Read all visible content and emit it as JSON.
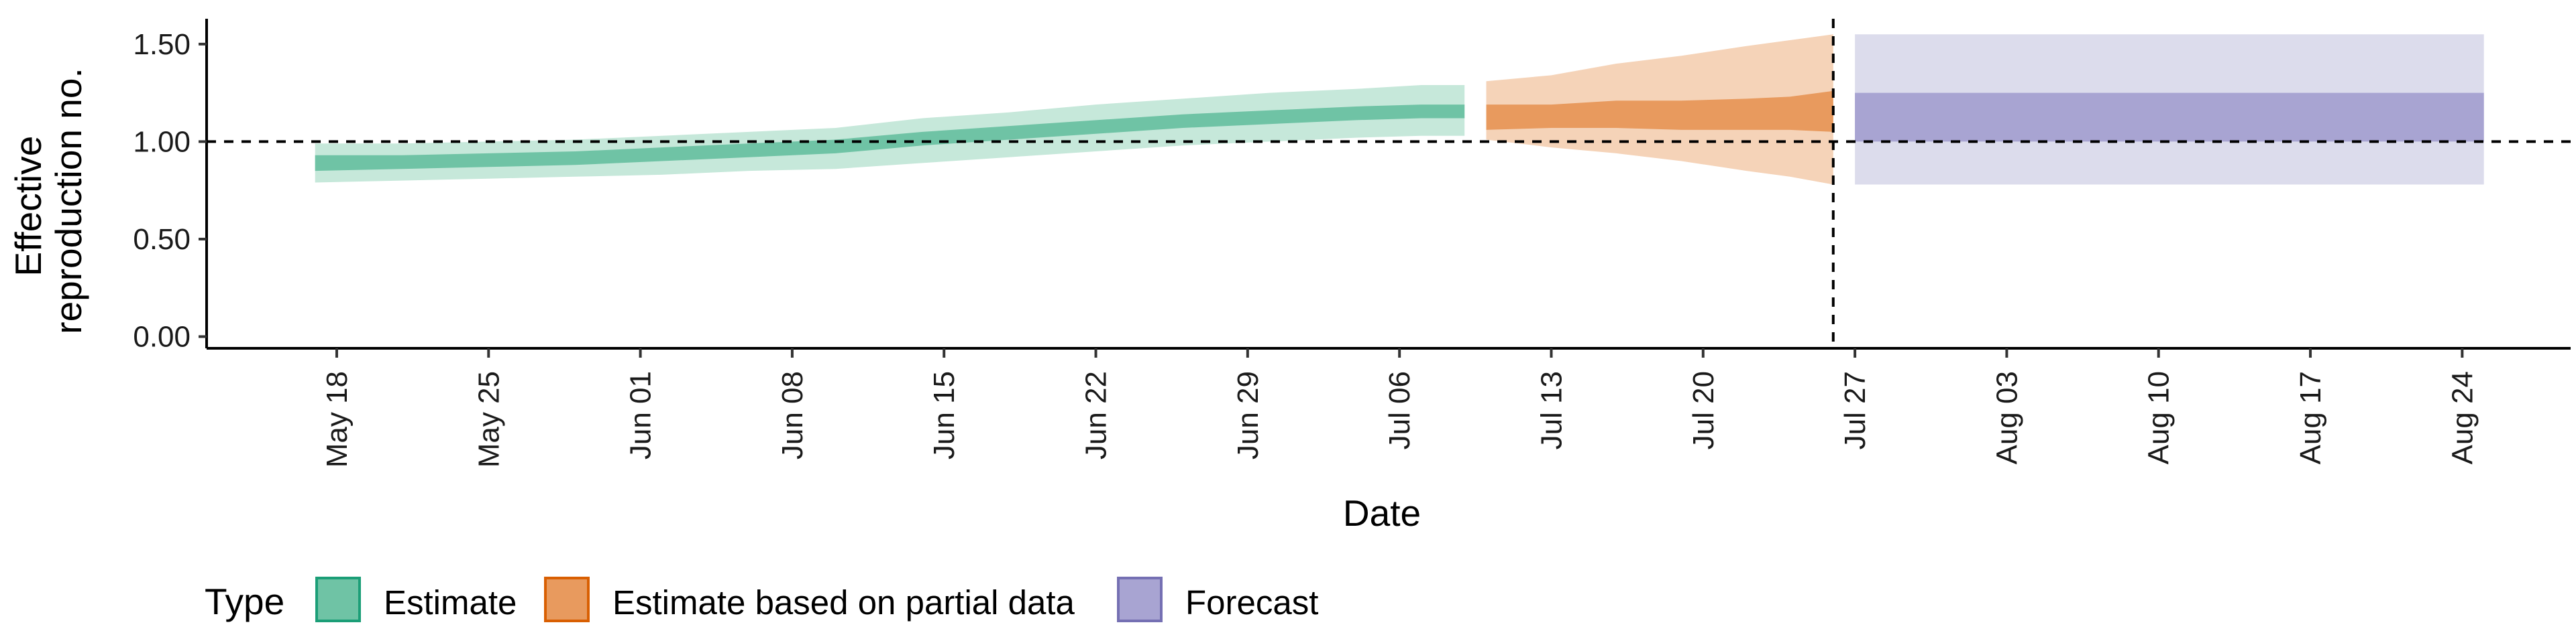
{
  "chart_data": {
    "type": "area",
    "title": "",
    "xlabel": "Date",
    "ylabel_lines": [
      "Effective",
      "reproduction no."
    ],
    "x_tick_labels": [
      "May 18",
      "May 25",
      "Jun 01",
      "Jun 08",
      "Jun 15",
      "Jun 22",
      "Jun 29",
      "Jul 06",
      "Jul 13",
      "Jul 20",
      "Jul 27",
      "Aug 03",
      "Aug 10",
      "Aug 17",
      "Aug 24"
    ],
    "x_tick_dates": [
      "2020-05-18",
      "2020-05-25",
      "2020-06-01",
      "2020-06-08",
      "2020-06-15",
      "2020-06-22",
      "2020-06-29",
      "2020-07-06",
      "2020-07-13",
      "2020-07-20",
      "2020-07-27",
      "2020-08-03",
      "2020-08-10",
      "2020-08-17",
      "2020-08-24"
    ],
    "xlim": [
      "2020-05-12",
      "2020-08-29"
    ],
    "y_tick_labels": [
      "0.00",
      "0.50",
      "1.00",
      "1.50"
    ],
    "y_ticks": [
      0,
      0.5,
      1.0,
      1.5
    ],
    "ylim": [
      -0.06,
      1.63
    ],
    "reference_hline": 1.0,
    "reference_vline": "2020-07-26",
    "grid": false,
    "legend": {
      "position": "bottom",
      "title": "Type",
      "entries": [
        {
          "label": "Estimate",
          "fill": "#6fc3a5",
          "border": "#1b9e77"
        },
        {
          "label": "Estimate based on partial data",
          "fill": "#e89a5e",
          "border": "#d95f02"
        },
        {
          "label": "Forecast",
          "fill": "#a8a4d2",
          "border": "#7570b3"
        }
      ]
    },
    "series": [
      {
        "name": "Estimate",
        "colors": {
          "inner": "#6fc3a5",
          "outer": "#c6e8da"
        },
        "x": [
          "2020-05-17",
          "2020-05-21",
          "2020-05-25",
          "2020-05-29",
          "2020-06-02",
          "2020-06-06",
          "2020-06-10",
          "2020-06-14",
          "2020-06-18",
          "2020-06-22",
          "2020-06-26",
          "2020-06-30",
          "2020-07-04",
          "2020-07-07",
          "2020-07-09"
        ],
        "outer_lower": [
          0.79,
          0.8,
          0.81,
          0.82,
          0.83,
          0.85,
          0.86,
          0.89,
          0.92,
          0.95,
          0.98,
          1.0,
          1.02,
          1.03,
          1.03
        ],
        "outer_upper": [
          0.99,
          0.99,
          1.0,
          1.01,
          1.03,
          1.05,
          1.07,
          1.12,
          1.15,
          1.19,
          1.22,
          1.25,
          1.27,
          1.29,
          1.29
        ],
        "inner_lower": [
          0.85,
          0.86,
          0.87,
          0.88,
          0.9,
          0.92,
          0.94,
          0.98,
          1.01,
          1.04,
          1.07,
          1.09,
          1.11,
          1.12,
          1.12
        ],
        "inner_upper": [
          0.93,
          0.93,
          0.94,
          0.95,
          0.97,
          0.99,
          1.01,
          1.05,
          1.08,
          1.11,
          1.14,
          1.16,
          1.18,
          1.19,
          1.19
        ]
      },
      {
        "name": "Estimate based on partial data",
        "colors": {
          "inner": "#e89a5e",
          "outer": "#f5d3b8"
        },
        "x": [
          "2020-07-10",
          "2020-07-13",
          "2020-07-16",
          "2020-07-19",
          "2020-07-22",
          "2020-07-24",
          "2020-07-26"
        ],
        "outer_lower": [
          1.01,
          0.97,
          0.94,
          0.9,
          0.85,
          0.82,
          0.78
        ],
        "outer_upper": [
          1.31,
          1.34,
          1.4,
          1.44,
          1.49,
          1.52,
          1.55
        ],
        "inner_lower": [
          1.06,
          1.07,
          1.07,
          1.06,
          1.06,
          1.06,
          1.05
        ],
        "inner_upper": [
          1.19,
          1.19,
          1.21,
          1.21,
          1.22,
          1.23,
          1.26
        ]
      },
      {
        "name": "Forecast",
        "colors": {
          "inner": "#a8a4d2",
          "outer": "#dcdcec"
        },
        "x": [
          "2020-07-27",
          "2020-08-25"
        ],
        "outer_lower": [
          0.78,
          0.78
        ],
        "outer_upper": [
          1.55,
          1.55
        ],
        "inner_lower": [
          1.0,
          1.0
        ],
        "inner_upper": [
          1.25,
          1.25
        ]
      }
    ]
  }
}
